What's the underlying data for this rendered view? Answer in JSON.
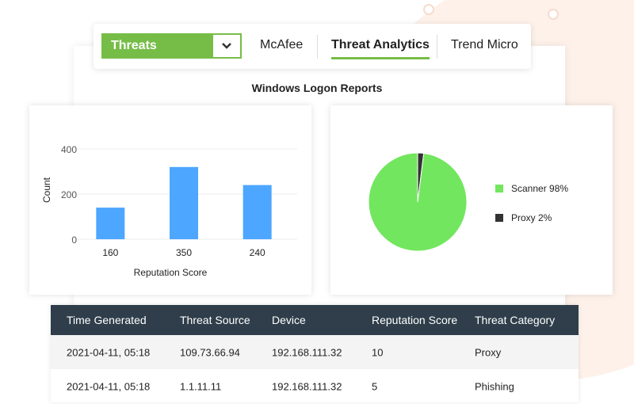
{
  "nav": {
    "dropdown_label": "Threats",
    "tabs": [
      {
        "label": "McAfee",
        "active": false
      },
      {
        "label": "Threat Analytics",
        "active": true
      },
      {
        "label": "Trend Micro",
        "active": false
      }
    ],
    "accent": "#76bd48"
  },
  "report_title": "Windows Logon Reports",
  "chart_data": [
    {
      "type": "bar",
      "categories": [
        "160",
        "350",
        "240"
      ],
      "values": [
        140,
        320,
        240
      ],
      "xlabel": "Reputation Score",
      "ylabel": "Count",
      "yticks": [
        "0",
        "200",
        "400"
      ],
      "ylim": [
        0,
        400
      ],
      "color": "#4da6ff",
      "grid": true
    },
    {
      "type": "pie",
      "slices": [
        {
          "label": "Scanner 98%",
          "value": 98,
          "color": "#72e65e"
        },
        {
          "label": "Proxy 2%",
          "value": 2,
          "color": "#333333"
        }
      ],
      "legend": "right"
    }
  ],
  "table": {
    "columns": [
      "Time Generated",
      "Threat Source",
      "Device",
      "Reputation Score",
      "Threat Category"
    ],
    "rows": [
      [
        "2021-04-11, 05:18",
        "109.73.66.94",
        "192.168.111.32",
        "10",
        "Proxy"
      ],
      [
        "2021-04-11, 05:18",
        "1.1.11.11",
        "192.168.111.32",
        "5",
        "Phishing"
      ]
    ]
  }
}
